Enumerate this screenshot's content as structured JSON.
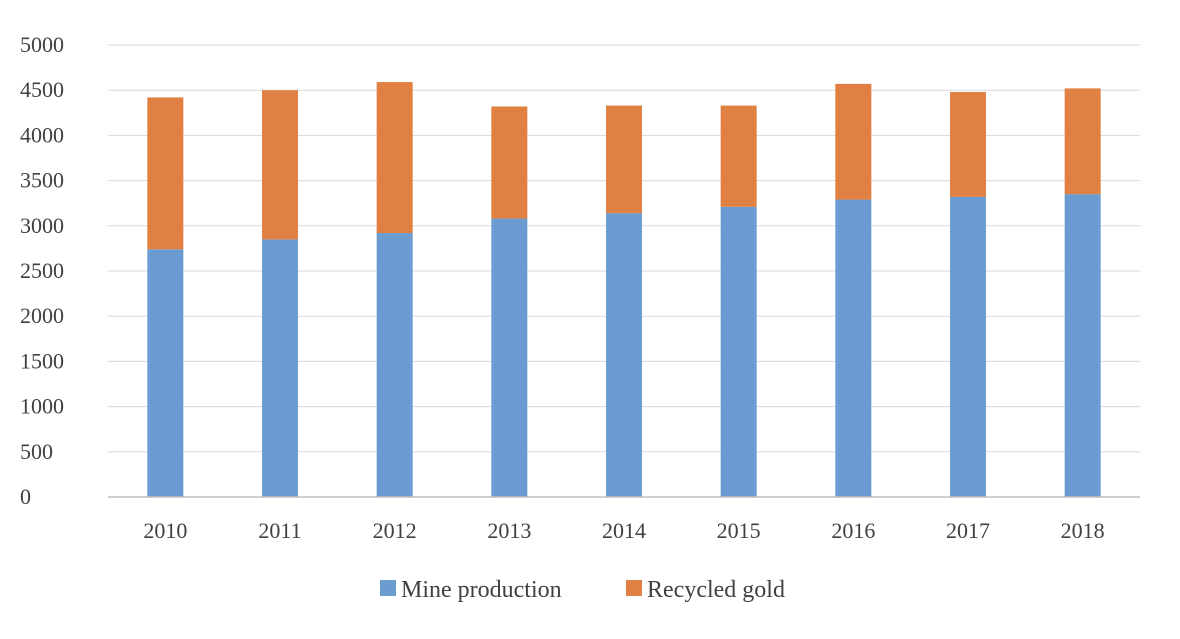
{
  "chart_data": {
    "type": "bar",
    "stacked": true,
    "categories": [
      "2010",
      "2011",
      "2012",
      "2013",
      "2014",
      "2015",
      "2016",
      "2017",
      "2018"
    ],
    "series": [
      {
        "name": "Mine production",
        "color": "#6a9bd1",
        "values": [
          2740,
          2850,
          2920,
          3080,
          3140,
          3210,
          3290,
          3320,
          3350
        ]
      },
      {
        "name": "Recycled gold",
        "color": "#e08143",
        "values": [
          1680,
          1650,
          1670,
          1240,
          1190,
          1120,
          1280,
          1160,
          1170
        ]
      }
    ],
    "ylim": [
      0,
      5000
    ],
    "yticks": [
      "0",
      "500",
      "1000",
      "1500",
      "2000",
      "2500",
      "3000",
      "3500",
      "4000",
      "4500",
      "5000"
    ],
    "grid": true,
    "legend_position": "bottom"
  }
}
